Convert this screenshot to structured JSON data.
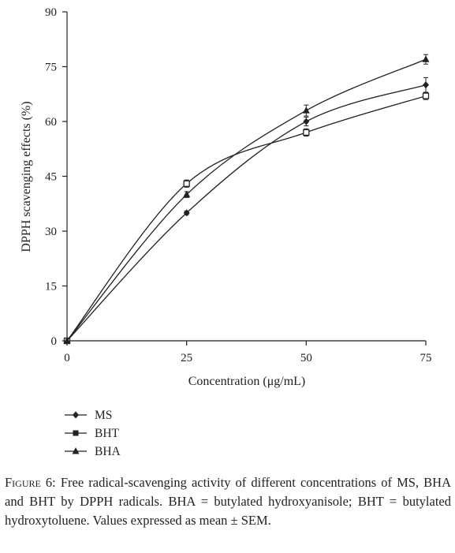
{
  "chart_data": {
    "type": "line",
    "xlabel": "Concentration (μg/mL)",
    "ylabel": "DPPH scavenging effects (%)",
    "x": [
      0,
      25,
      50,
      75
    ],
    "xticks": [
      0,
      25,
      50,
      75
    ],
    "yticks": [
      0,
      15,
      30,
      45,
      60,
      75,
      90
    ],
    "xlim": [
      0,
      75
    ],
    "ylim": [
      0,
      90
    ],
    "grid": false,
    "legend_position": "bottom-left",
    "series": [
      {
        "name": "MS",
        "marker": "diamond",
        "values": [
          0,
          35,
          60,
          70
        ],
        "errors": [
          0,
          0.5,
          1.2,
          2.0
        ]
      },
      {
        "name": "BHT",
        "marker": "open-square",
        "values": [
          0,
          43,
          57,
          67
        ],
        "errors": [
          0,
          1.0,
          1.0,
          1.0
        ]
      },
      {
        "name": "BHA",
        "marker": "filled-triangle",
        "values": [
          0,
          40,
          63,
          77
        ],
        "errors": [
          0,
          0.8,
          1.5,
          1.3
        ]
      }
    ]
  },
  "caption": {
    "label": "Figure 6:",
    "text": " Free radical-scavenging activity of different concentrations of MS, BHA and BHT by DPPH radicals. BHA = butylated hydroxyanisole; BHT = butylated hydroxytoluene. Values expressed as mean ± SEM."
  }
}
